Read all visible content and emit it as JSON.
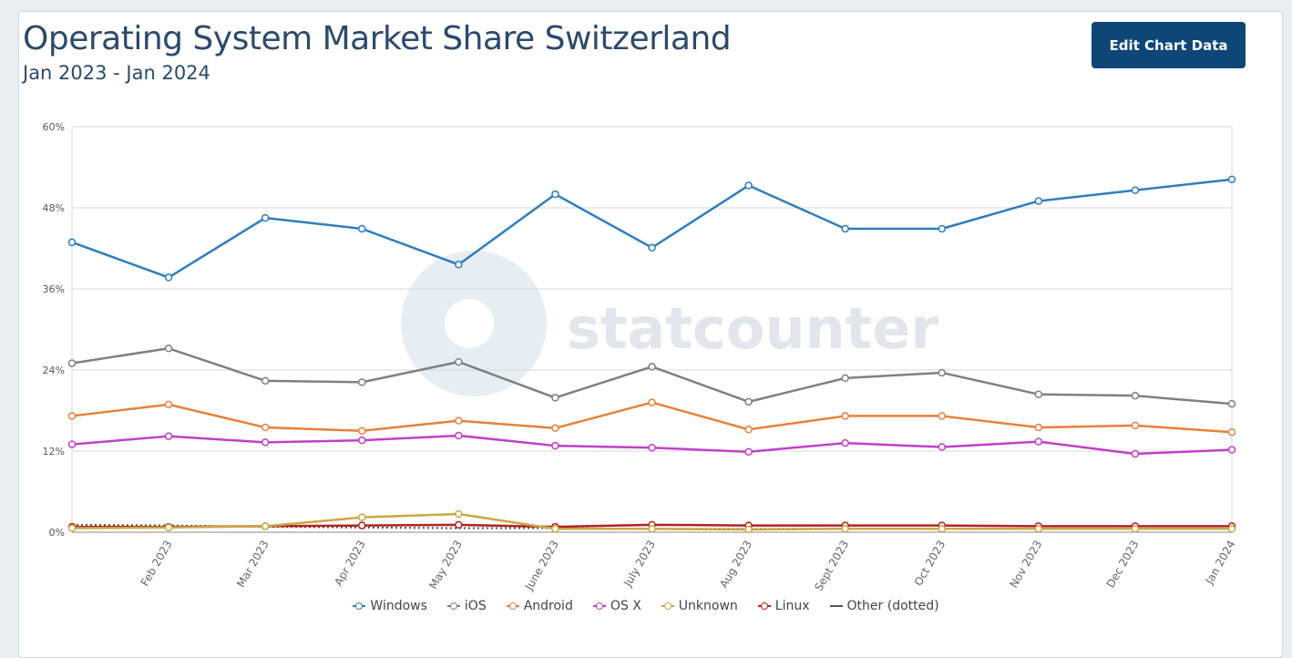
{
  "header": {
    "title": "Operating System Market Share Switzerland",
    "subtitle": "Jan 2023 - Jan 2024",
    "edit_button_label": "Edit Chart Data"
  },
  "watermark": {
    "text": "statcounter"
  },
  "chart_data": {
    "type": "line",
    "title": "Operating System Market Share Switzerland",
    "subtitle": "Jan 2023 - Jan 2024",
    "xlabel": "",
    "ylabel": "",
    "ylim": [
      0,
      60
    ],
    "y_ticks": [
      "0%",
      "12%",
      "24%",
      "36%",
      "48%",
      "60%"
    ],
    "y_tick_values": [
      0,
      12,
      24,
      36,
      48,
      60
    ],
    "categories": [
      "Jan 2023",
      "Feb 2023",
      "Mar 2023",
      "Apr 2023",
      "May 2023",
      "June 2023",
      "July 2023",
      "Aug 2023",
      "Sept 2023",
      "Oct 2023",
      "Nov 2023",
      "Dec 2023",
      "Jan 2024"
    ],
    "x_tick_labels": [
      "",
      "Feb 2023",
      "Mar 2023",
      "Apr 2023",
      "May 2023",
      "June 2023",
      "July 2023",
      "Aug 2023",
      "Sept 2023",
      "Oct 2023",
      "Nov 2023",
      "Dec 2023",
      "Jan 2024"
    ],
    "grid": true,
    "legend_position": "bottom",
    "series": [
      {
        "name": "Windows",
        "color": "#2f7ebd",
        "values": [
          42.9,
          37.7,
          46.5,
          44.9,
          39.6,
          50.0,
          42.1,
          51.3,
          44.9,
          44.9,
          49.0,
          50.6,
          52.2
        ]
      },
      {
        "name": "iOS",
        "color": "#808080",
        "values": [
          25.0,
          27.2,
          22.4,
          22.2,
          25.2,
          19.9,
          24.5,
          19.3,
          22.8,
          23.6,
          20.4,
          20.2,
          19.0
        ]
      },
      {
        "name": "Android",
        "color": "#e8803a",
        "values": [
          17.2,
          18.9,
          15.5,
          15.0,
          16.5,
          15.4,
          19.2,
          15.2,
          17.2,
          17.2,
          15.5,
          15.8,
          14.8
        ]
      },
      {
        "name": "OS X",
        "color": "#c040c8",
        "values": [
          13.0,
          14.2,
          13.3,
          13.6,
          14.3,
          12.8,
          12.5,
          11.9,
          13.2,
          12.6,
          13.4,
          11.6,
          12.2
        ]
      },
      {
        "name": "Unknown",
        "color": "#c9a844",
        "values": [
          0.6,
          0.7,
          0.9,
          2.2,
          2.7,
          0.5,
          0.5,
          0.4,
          0.5,
          0.5,
          0.5,
          0.5,
          0.5
        ]
      },
      {
        "name": "Linux",
        "color": "#b22222",
        "values": [
          0.8,
          0.8,
          0.9,
          1.0,
          1.1,
          0.8,
          1.1,
          1.0,
          1.0,
          1.0,
          0.9,
          0.9,
          0.9
        ]
      },
      {
        "name": "Other (dotted)",
        "color": "#555555",
        "dotted": true,
        "values": [
          1.1,
          1.0,
          0.8,
          0.7,
          0.6,
          0.6,
          0.5,
          0.5,
          0.5,
          0.5,
          0.5,
          0.5,
          0.5
        ]
      }
    ]
  }
}
